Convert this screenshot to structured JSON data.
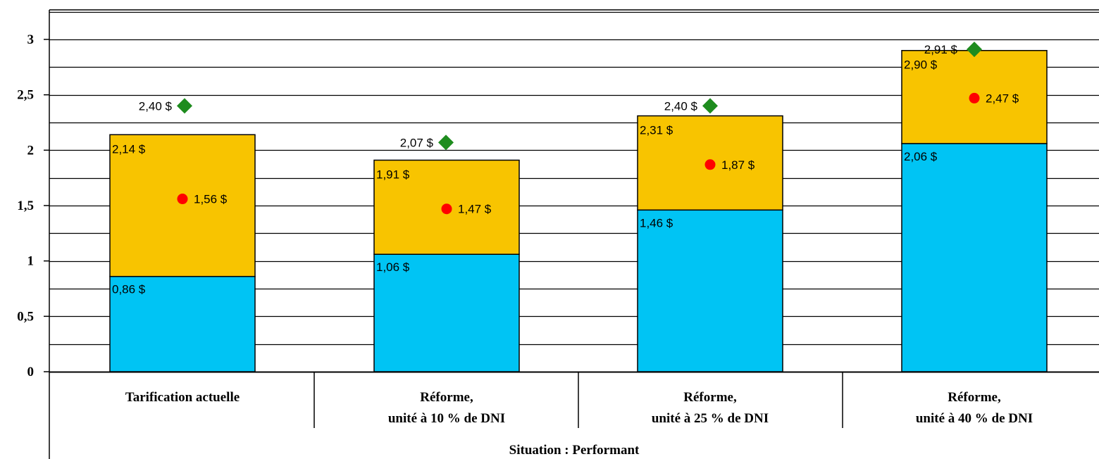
{
  "chart_data": {
    "type": "bar",
    "stacked": true,
    "categories": [
      [
        "Tarification actuelle"
      ],
      [
        "Réforme,",
        "unité à 10 % de DNI"
      ],
      [
        "Réforme,",
        "unité à 25 % de DNI"
      ],
      [
        "Réforme,",
        "unité à 40 % de DNI"
      ]
    ],
    "group_label": "Situation : Performant",
    "ylim": [
      0,
      3
    ],
    "yticks": [
      {
        "value": 0,
        "label": "0"
      },
      {
        "value": 0.5,
        "label": "0,5"
      },
      {
        "value": 1,
        "label": "1"
      },
      {
        "value": 1.5,
        "label": "1,5"
      },
      {
        "value": 2,
        "label": "2"
      },
      {
        "value": 2.5,
        "label": "2,5"
      },
      {
        "value": 3,
        "label": "3"
      }
    ],
    "gridlines_every": 0.25,
    "series": [
      {
        "kind": "bar",
        "color": "#00C4F4",
        "values": [
          0.86,
          1.06,
          1.46,
          2.06
        ],
        "labels": [
          "0,86 $",
          "1,06 $",
          "1,46 $",
          "2,06 $"
        ]
      },
      {
        "kind": "bar",
        "color": "#F8C400",
        "values": [
          1.28,
          0.85,
          0.85,
          0.84
        ],
        "labels": [
          "2,14 $",
          "1,91 $",
          "2,31 $",
          "2,90 $"
        ]
      },
      {
        "kind": "marker",
        "shape": "circle",
        "color": "#FF0000",
        "values": [
          1.56,
          1.47,
          1.87,
          2.47
        ],
        "labels": [
          "1,56 $",
          "1,47 $",
          "1,87 $",
          "2,47 $"
        ]
      },
      {
        "kind": "marker",
        "shape": "diamond",
        "color": "#1E8C1E",
        "values": [
          2.4,
          2.07,
          2.4,
          2.91
        ],
        "labels": [
          "2,40 $",
          "2,07 $",
          "2,40 $",
          "2,91 $"
        ]
      }
    ]
  }
}
